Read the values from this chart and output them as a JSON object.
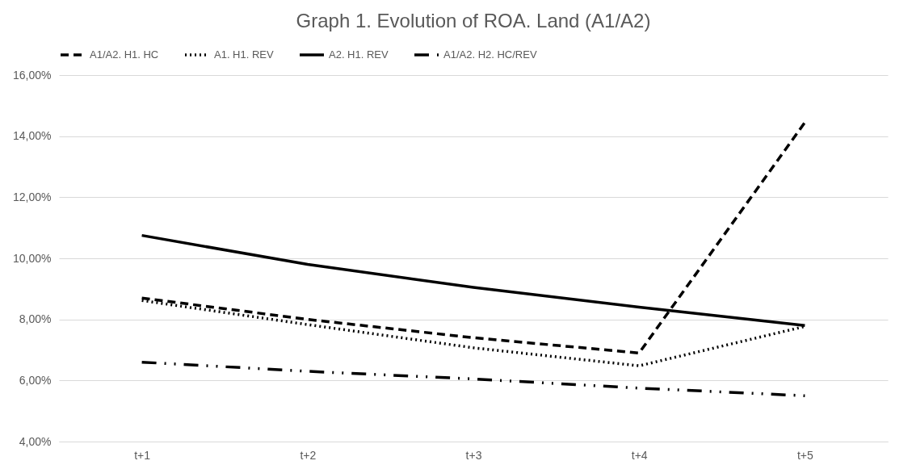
{
  "chart_data": {
    "type": "line",
    "title": "Graph 1. Evolution of ROA. Land (A1/A2)",
    "categories": [
      "t+1",
      "t+2",
      "t+3",
      "t+4",
      "t+5"
    ],
    "series": [
      {
        "name": "A1/A2. H1. HC",
        "color": "#000000",
        "line_style": "dashed",
        "values": [
          8.7,
          8.0,
          7.4,
          6.9,
          14.45
        ]
      },
      {
        "name": "A1. H1. REV",
        "color": "#000000",
        "line_style": "dotted",
        "values": [
          8.62,
          7.83,
          7.07,
          6.48,
          7.77
        ]
      },
      {
        "name": "A2. H1. REV",
        "color": "#000000",
        "line_style": "solid",
        "values": [
          10.75,
          9.8,
          9.05,
          8.4,
          7.8
        ]
      },
      {
        "name": "A1/A2. H2. HC/REV",
        "color": "#000000",
        "line_style": "dashdot",
        "values": [
          6.6,
          6.3,
          6.05,
          5.75,
          5.5
        ]
      }
    ],
    "ylim": [
      4,
      16
    ],
    "yticks": [
      {
        "value": 4,
        "label": "4,00%"
      },
      {
        "value": 6,
        "label": "6,00%"
      },
      {
        "value": 8,
        "label": "8,00%"
      },
      {
        "value": 10,
        "label": "10,00%"
      },
      {
        "value": 12,
        "label": "12,00%"
      },
      {
        "value": 14,
        "label": "14,00%"
      },
      {
        "value": 16,
        "label": "16,00%"
      }
    ],
    "grid": "y",
    "legend": "top",
    "marker": "none"
  }
}
